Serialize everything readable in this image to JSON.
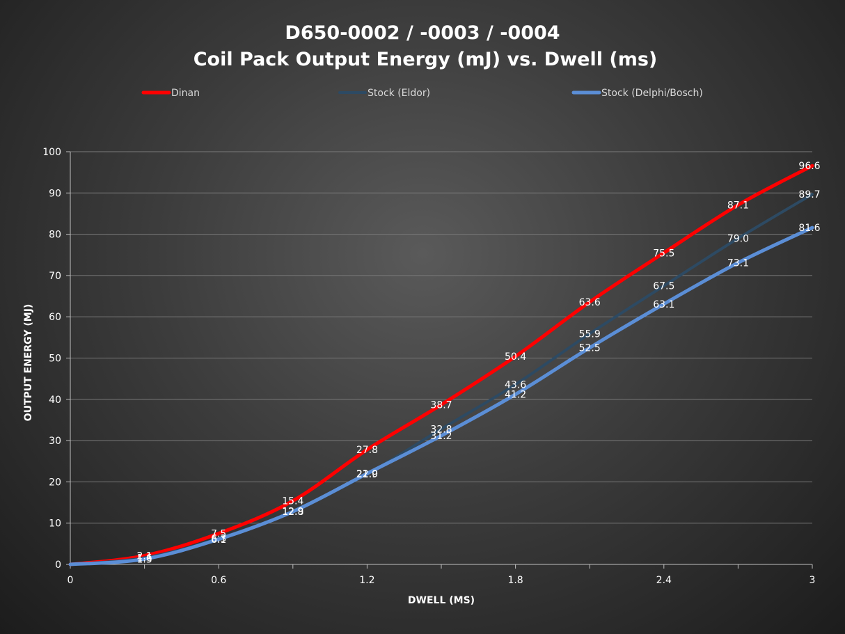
{
  "chart_data": {
    "type": "line",
    "title_line1": "D650-0002 / -0003 / -0004",
    "title_line2": "Coil Pack Output Energy (mJ) vs. Dwell (ms)",
    "xlabel": "DWELL (MS)",
    "ylabel": "OUTPUT ENERGY (MJ)",
    "xlim": [
      0,
      3
    ],
    "ylim": [
      0,
      100
    ],
    "x_ticks": [
      "0",
      "0.6",
      "1.2",
      "1.8",
      "2.4",
      "3"
    ],
    "y_ticks": [
      "0",
      "10",
      "20",
      "30",
      "40",
      "50",
      "60",
      "70",
      "80",
      "90",
      "100"
    ],
    "grid": true,
    "legend_position": "top",
    "x": [
      0,
      0.3,
      0.6,
      0.9,
      1.2,
      1.5,
      1.8,
      2.1,
      2.4,
      2.7,
      3.0
    ],
    "series": [
      {
        "name": "Dinan",
        "color": "#ff0000",
        "values": [
          0,
          2.1,
          7.5,
          15.4,
          27.8,
          38.7,
          50.4,
          63.6,
          75.5,
          87.1,
          96.6
        ],
        "labels": [
          "",
          "2.1",
          "7.5",
          "15.4",
          "27.8",
          "38.7",
          "50.4",
          "63.6",
          "75.5",
          "87.1",
          "96.6"
        ]
      },
      {
        "name": "Stock (Eldor)",
        "color": "#2d4a63",
        "values": [
          0,
          1.6,
          6.3,
          12.9,
          21.9,
          32.8,
          43.6,
          55.9,
          67.5,
          79.0,
          89.7
        ],
        "labels": [
          "",
          "1.6",
          "6.3",
          "12.9",
          "21.9",
          "32.8",
          "43.6",
          "55.9",
          "67.5",
          "79.0",
          "89.7"
        ]
      },
      {
        "name": "Stock (Delphi/Bosch)",
        "color": "#5b8ed6",
        "values": [
          0,
          1.3,
          6.1,
          12.8,
          22.0,
          31.2,
          41.2,
          52.5,
          63.1,
          73.1,
          81.6
        ],
        "labels": [
          "",
          "1.3",
          "6.1",
          "12.8",
          "22.0",
          "31.2",
          "41.2",
          "52.5",
          "63.1",
          "73.1",
          "81.6"
        ]
      }
    ]
  }
}
